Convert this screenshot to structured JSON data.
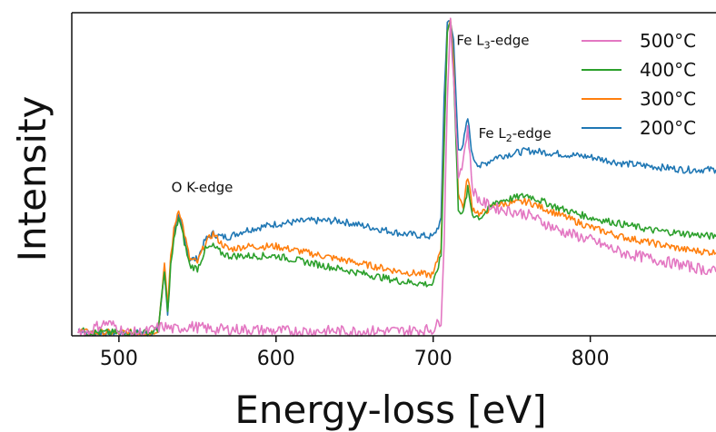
{
  "chart_data": {
    "type": "line",
    "title": "",
    "xlabel": "Energy-loss [eV]",
    "ylabel": "Intensity",
    "xlim": [
      470,
      880
    ],
    "ylim": [
      0,
      1
    ],
    "xticks": [
      500,
      600,
      700,
      800
    ],
    "yticks": [],
    "grid": false,
    "legend_position": "top-right",
    "annotations": [
      {
        "text": "O K-edge",
        "x": 553,
        "y": 0.45
      },
      {
        "text": "Fe L",
        "sub": "3",
        "suffix": "-edge",
        "x": 738,
        "y": 0.91
      },
      {
        "text": "Fe L",
        "sub": "2",
        "suffix": "-edge",
        "x": 752,
        "y": 0.62
      }
    ],
    "series": [
      {
        "name": "500°C",
        "color": "#e377c2",
        "x": [
          474,
          480,
          486,
          492,
          498,
          504,
          510,
          516,
          522,
          528,
          535,
          545,
          560,
          580,
          600,
          620,
          640,
          660,
          680,
          700,
          705,
          707,
          709,
          711,
          713,
          716,
          719,
          722,
          725,
          730,
          740,
          760,
          780,
          800,
          820,
          840,
          860,
          880
        ],
        "y": [
          0.02,
          0.01,
          0.03,
          0.04,
          0.03,
          0.01,
          0.01,
          0.01,
          0.02,
          0.03,
          0.02,
          0.03,
          0.02,
          0.02,
          0.015,
          0.015,
          0.015,
          0.015,
          0.015,
          0.02,
          0.05,
          0.3,
          0.75,
          0.99,
          0.8,
          0.5,
          0.55,
          0.65,
          0.46,
          0.42,
          0.4,
          0.38,
          0.33,
          0.3,
          0.26,
          0.24,
          0.22,
          0.2
        ]
      },
      {
        "name": "400°C",
        "color": "#2ca02c",
        "x": [
          474,
          480,
          490,
          500,
          510,
          520,
          525,
          529,
          531,
          533,
          535,
          538,
          540,
          545,
          550,
          555,
          560,
          565,
          570,
          580,
          600,
          620,
          640,
          660,
          680,
          700,
          705,
          707,
          709,
          711,
          713,
          716,
          719,
          722,
          725,
          730,
          740,
          760,
          780,
          800,
          820,
          840,
          860,
          880
        ],
        "y": [
          0.02,
          0.01,
          0.01,
          0.01,
          0.01,
          0.01,
          0.02,
          0.2,
          0.07,
          0.22,
          0.3,
          0.37,
          0.33,
          0.22,
          0.21,
          0.27,
          0.28,
          0.26,
          0.25,
          0.25,
          0.25,
          0.23,
          0.21,
          0.19,
          0.17,
          0.16,
          0.25,
          0.6,
          0.96,
          0.99,
          0.82,
          0.4,
          0.38,
          0.46,
          0.38,
          0.37,
          0.42,
          0.44,
          0.4,
          0.37,
          0.35,
          0.33,
          0.32,
          0.31
        ]
      },
      {
        "name": "300°C",
        "color": "#ff7f0e",
        "x": [
          474,
          480,
          490,
          500,
          510,
          520,
          525,
          529,
          531,
          533,
          535,
          538,
          540,
          545,
          550,
          555,
          560,
          565,
          570,
          580,
          600,
          620,
          640,
          660,
          680,
          700,
          705,
          707,
          709,
          711,
          713,
          716,
          719,
          722,
          725,
          730,
          740,
          760,
          780,
          800,
          820,
          840,
          860,
          880
        ],
        "y": [
          0.02,
          0.01,
          0.01,
          0.01,
          0.01,
          0.01,
          0.02,
          0.22,
          0.09,
          0.25,
          0.33,
          0.4,
          0.36,
          0.24,
          0.23,
          0.29,
          0.32,
          0.29,
          0.27,
          0.28,
          0.28,
          0.26,
          0.24,
          0.22,
          0.2,
          0.19,
          0.28,
          0.62,
          0.96,
          0.99,
          0.85,
          0.45,
          0.4,
          0.5,
          0.4,
          0.38,
          0.41,
          0.42,
          0.38,
          0.34,
          0.31,
          0.29,
          0.27,
          0.26
        ]
      },
      {
        "name": "200°C",
        "color": "#1f77b4",
        "x": [
          474,
          480,
          490,
          500,
          510,
          520,
          525,
          529,
          531,
          533,
          535,
          538,
          540,
          545,
          550,
          555,
          560,
          565,
          570,
          580,
          600,
          620,
          640,
          660,
          680,
          700,
          705,
          707,
          709,
          711,
          713,
          716,
          719,
          722,
          725,
          730,
          740,
          760,
          780,
          800,
          820,
          840,
          860,
          880
        ],
        "y": [
          0.02,
          0.01,
          0.01,
          0.01,
          0.01,
          0.01,
          0.02,
          0.2,
          0.07,
          0.24,
          0.32,
          0.37,
          0.34,
          0.24,
          0.24,
          0.3,
          0.32,
          0.31,
          0.31,
          0.33,
          0.35,
          0.36,
          0.36,
          0.34,
          0.32,
          0.31,
          0.36,
          0.75,
          0.98,
          0.99,
          0.92,
          0.58,
          0.6,
          0.68,
          0.56,
          0.53,
          0.56,
          0.58,
          0.57,
          0.56,
          0.54,
          0.53,
          0.52,
          0.52
        ]
      }
    ]
  }
}
